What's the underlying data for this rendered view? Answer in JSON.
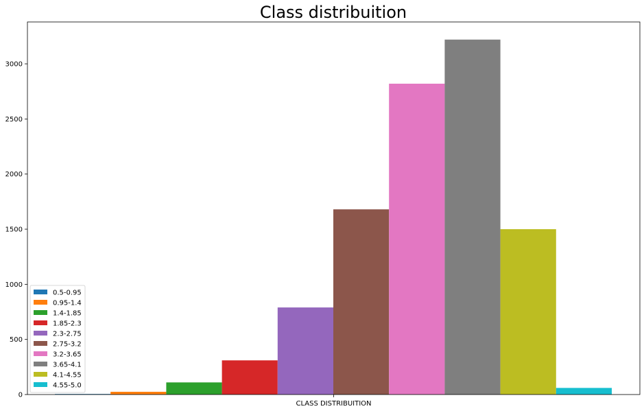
{
  "chart_data": {
    "type": "bar",
    "title": "Class distribuition",
    "xlabel": "",
    "ylabel": "",
    "categories": [
      "CLASS DISTRIBUITION"
    ],
    "ylim": [
      0,
      3380
    ],
    "yticks": [
      0,
      500,
      1000,
      1500,
      2000,
      2500,
      3000
    ],
    "grid": false,
    "legend_position": "lower-left",
    "series": [
      {
        "name": "0.5-0.95",
        "values": [
          5
        ],
        "color": "#1f77b4"
      },
      {
        "name": "0.95-1.4",
        "values": [
          25
        ],
        "color": "#ff7f0e"
      },
      {
        "name": "1.4-1.85",
        "values": [
          110
        ],
        "color": "#2ca02c"
      },
      {
        "name": "1.85-2.3",
        "values": [
          310
        ],
        "color": "#d62728"
      },
      {
        "name": "2.3-2.75",
        "values": [
          790
        ],
        "color": "#9467bd"
      },
      {
        "name": "2.75-3.2",
        "values": [
          1680
        ],
        "color": "#8c564b"
      },
      {
        "name": "3.2-3.65",
        "values": [
          2820
        ],
        "color": "#e377c2"
      },
      {
        "name": "3.65-4.1",
        "values": [
          3220
        ],
        "color": "#7f7f7f"
      },
      {
        "name": "4.1-4.55",
        "values": [
          1500
        ],
        "color": "#bcbd22"
      },
      {
        "name": "4.55-5.0",
        "values": [
          60
        ],
        "color": "#17becf"
      }
    ]
  }
}
